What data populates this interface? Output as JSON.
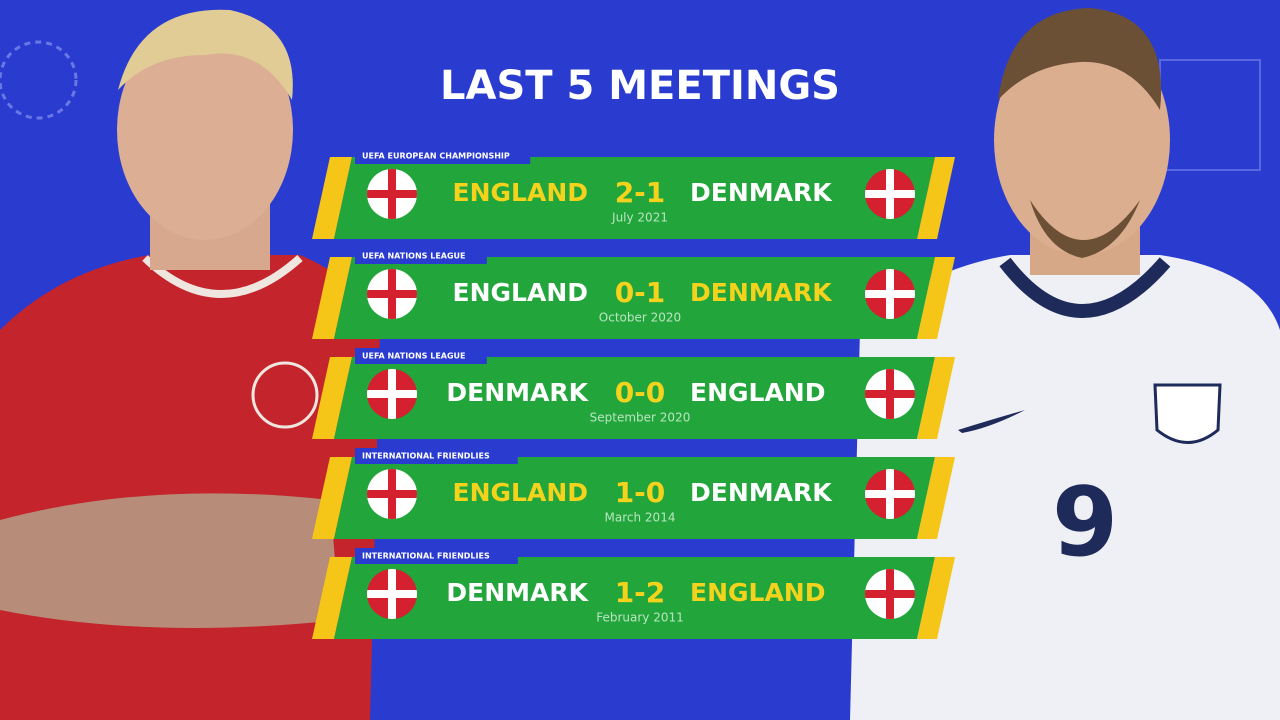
{
  "title": "LAST 5 MEETINGS",
  "matches": [
    {
      "competition": "UEFA EUROPEAN CHAMPIONSHIP",
      "home": "ENGLAND",
      "score": "2-1",
      "away": "DENMARK",
      "date": "July 2021",
      "home_color": "#f5d31c",
      "away_color": "#ffffff",
      "home_flag": [
        "#ffffff",
        "#d4202f"
      ],
      "away_flag": [
        "#d4202f",
        "#ffffff"
      ]
    },
    {
      "competition": "UEFA NATIONS LEAGUE",
      "home": "ENGLAND",
      "score": "0-1",
      "away": "DENMARK",
      "date": "October 2020",
      "home_color": "#ffffff",
      "away_color": "#f5d31c",
      "home_flag": [
        "#ffffff",
        "#d4202f"
      ],
      "away_flag": [
        "#d4202f",
        "#ffffff"
      ]
    },
    {
      "competition": "UEFA NATIONS LEAGUE",
      "home": "DENMARK",
      "score": "0-0",
      "away": "ENGLAND",
      "date": "September 2020",
      "home_color": "#ffffff",
      "away_color": "#ffffff",
      "home_flag": [
        "#d4202f",
        "#ffffff"
      ],
      "away_flag": [
        "#ffffff",
        "#d4202f"
      ]
    },
    {
      "competition": "INTERNATIONAL FRIENDLIES",
      "home": "ENGLAND",
      "score": "1-0",
      "away": "DENMARK",
      "date": "March 2014",
      "home_color": "#f5d31c",
      "away_color": "#ffffff",
      "home_flag": [
        "#ffffff",
        "#d4202f"
      ],
      "away_flag": [
        "#d4202f",
        "#ffffff"
      ]
    },
    {
      "competition": "INTERNATIONAL FRIENDLIES",
      "home": "DENMARK",
      "score": "1-2",
      "away": "ENGLAND",
      "date": "February 2011",
      "home_color": "#ffffff",
      "away_color": "#f5d31c",
      "home_flag": [
        "#d4202f",
        "#ffffff"
      ],
      "away_flag": [
        "#ffffff",
        "#d4202f"
      ]
    }
  ]
}
